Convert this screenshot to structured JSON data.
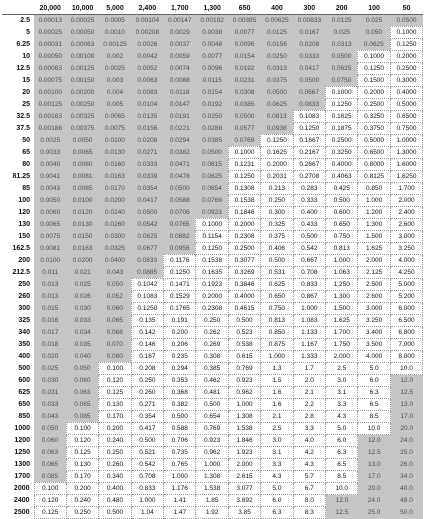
{
  "columns": [
    "20,000",
    "10,000",
    "5,000",
    "2,400",
    "1,700",
    "1,300",
    "650",
    "400",
    "300",
    "200",
    "100",
    "50"
  ],
  "rows": [
    {
      "label": "2.5",
      "cells": [
        "0.00013",
        "0.00025",
        "0.0005",
        "0.00104",
        "0.00147",
        "0.00192",
        "0.00385",
        "0.00625",
        "0.00833",
        "0.0125",
        "0.025",
        "0.0500"
      ]
    },
    {
      "label": "5",
      "cells": [
        "0.00025",
        "0.00050",
        "0.0010",
        "0.00208",
        "0.0029",
        "0.0038",
        "0.0077",
        "0.0125",
        "0.0167",
        "0.025",
        "0.050",
        "0.1000"
      ]
    },
    {
      "label": "6.25",
      "cells": [
        "0.00031",
        "0.00063",
        "0.00125",
        "0.0026",
        "0.0037",
        "0.0048",
        "0.0096",
        "0.0156",
        "0.0208",
        "0.0313",
        "0.0625",
        "0.1250"
      ]
    },
    {
      "label": "10",
      "cells": [
        "0.00050",
        "0.00100",
        "0.002",
        "0.0042",
        "0.0059",
        "0.0077",
        "0.0154",
        "0.0250",
        "0.0333",
        "0.0500",
        "0.1000",
        "0.2000"
      ]
    },
    {
      "label": "12.5",
      "cells": [
        "0.00063",
        "0.00125",
        "0.0025",
        "0.0052",
        "0.0074",
        "0.0096",
        "0.0192",
        "0.0313",
        "0.0417",
        "0.0625",
        "0.1250",
        "0.2500"
      ]
    },
    {
      "label": "15",
      "cells": [
        "0.00075",
        "0.00150",
        "0.003",
        "0.0063",
        "0.0088",
        "0.0115",
        "0.0231",
        "0.0375",
        "0.0500",
        "0.0750",
        "0.1500",
        "0.3000"
      ]
    },
    {
      "label": "20",
      "cells": [
        "0.00100",
        "0.00200",
        "0.004",
        "0.0083",
        "0.0118",
        "0.0154",
        "0.0308",
        "0.0500",
        "0.0667",
        "0.1000",
        "0.2000",
        "0.4000"
      ]
    },
    {
      "label": "25",
      "cells": [
        "0.00125",
        "0.00250",
        "0.005",
        "0.0104",
        "0.0147",
        "0.0192",
        "0.0385",
        "0.0625",
        "0.0833",
        "0.1250",
        "0.2500",
        "0.5000"
      ]
    },
    {
      "label": "32.5",
      "cells": [
        "0.00163",
        "0.00325",
        "0.0065",
        "0.0135",
        "0.0191",
        "0.0250",
        "0.0500",
        "0.0813",
        "0.1083",
        "0.1625",
        "0.3250",
        "0.6500"
      ]
    },
    {
      "label": "37.5",
      "cells": [
        "0.00188",
        "0.00375",
        "0.0075",
        "0.0156",
        "0.0221",
        "0.0288",
        "0.0577",
        "0.0938",
        "0.1250",
        "0.1875",
        "0.3750",
        "0.7500"
      ]
    },
    {
      "label": "50",
      "cells": [
        "0.0025",
        "0.0050",
        "0.0100",
        "0.0208",
        "0.0294",
        "0.0385",
        "0.0769",
        "0.1250",
        "0.1667",
        "0.2500",
        "0.5000",
        "1.0000"
      ]
    },
    {
      "label": "65",
      "cells": [
        "0.0033",
        "0.0065",
        "0.0130",
        "0.0271",
        "0.0382",
        "0.0500",
        "0.1000",
        "0.1625",
        "0.2167",
        "0.3250",
        "0.6500",
        "1.3000"
      ]
    },
    {
      "label": "80",
      "cells": [
        "0.0040",
        "0.0080",
        "0.0160",
        "0.0333",
        "0.0471",
        "0.0615",
        "0.1231",
        "0.2000",
        "0.2667",
        "0.4000",
        "0.8000",
        "1.6000"
      ]
    },
    {
      "label": "81.25",
      "cells": [
        "0.0041",
        "0.0081",
        "0.0163",
        "0.0339",
        "0.0478",
        "0.0625",
        "0.1250",
        "0.2031",
        "0.2708",
        "0.4063",
        "0.8125",
        "1.6250"
      ]
    },
    {
      "label": "85",
      "cells": [
        "0.0043",
        "0.0085",
        "0.0170",
        "0.0354",
        "0.0500",
        "0.0654",
        "0.1308",
        "0.213",
        "0.283",
        "0.425",
        "0.850",
        "1.700"
      ]
    },
    {
      "label": "100",
      "cells": [
        "0.0050",
        "0.0100",
        "0.0200",
        "0.0417",
        "0.0588",
        "0.0769",
        "0.1538",
        "0.250",
        "0.333",
        "0.500",
        "1.000",
        "2.000"
      ]
    },
    {
      "label": "120",
      "cells": [
        "0.0060",
        "0.0120",
        "0.0240",
        "0.0500",
        "0.0706",
        "0.0923",
        "0.1846",
        "0.300",
        "0.400",
        "0.600",
        "1.200",
        "2.400"
      ]
    },
    {
      "label": "130",
      "cells": [
        "0.0065",
        "0.0130",
        "0.0260",
        "0.0542",
        "0.0765",
        "0.1000",
        "0.2000",
        "0.325",
        "0.433",
        "0.650",
        "1.300",
        "2.600"
      ]
    },
    {
      "label": "150",
      "cells": [
        "0.0075",
        "0.0150",
        "0.0300",
        "0.0625",
        "0.0882",
        "0.1154",
        "0.2308",
        "0.375",
        "0.500",
        "0.750",
        "1.500",
        "3.000"
      ]
    },
    {
      "label": "162.5",
      "cells": [
        "0.0081",
        "0.0163",
        "0.0325",
        "0.0677",
        "0.0956",
        "0.1250",
        "0.2500",
        "0.406",
        "0.542",
        "0.813",
        "1.625",
        "3.250"
      ]
    },
    {
      "label": "200",
      "cells": [
        "0.0100",
        "0.0200",
        "0.0400",
        "0.0833",
        "0.1176",
        "0.1538",
        "0.3077",
        "0.500",
        "0.667",
        "1.000",
        "2.000",
        "4.000"
      ]
    },
    {
      "label": "212.5",
      "cells": [
        "0.011",
        "0.021",
        "0.043",
        "0.0885",
        "0.1250",
        "0.1635",
        "0.3269",
        "0.531",
        "0.708",
        "1.063",
        "2.125",
        "4.250"
      ]
    },
    {
      "label": "250",
      "cells": [
        "0.013",
        "0.025",
        "0.050",
        "0.1042",
        "0.1471",
        "0.1923",
        "0.3846",
        "0.625",
        "0.833",
        "1.250",
        "2.500",
        "5.000"
      ]
    },
    {
      "label": "260",
      "cells": [
        "0.013",
        "0.026",
        "0.052",
        "0.1083",
        "0.1529",
        "0.2000",
        "0.4000",
        "0.650",
        "0.867",
        "1.300",
        "2.600",
        "5.200"
      ]
    },
    {
      "label": "300",
      "cells": [
        "0.015",
        "0.030",
        "0.060",
        "0.1250",
        "0.1765",
        "0.2308",
        "0.4615",
        "0.750",
        "1.000",
        "1.500",
        "3.000",
        "6.000"
      ]
    },
    {
      "label": "325",
      "cells": [
        "0.016",
        "0.033",
        "0.065",
        "0.135",
        "0.191",
        "0.250",
        "0.500",
        "0.813",
        "1.083",
        "1.625",
        "3.250",
        "6.500"
      ]
    },
    {
      "label": "340",
      "cells": [
        "0.017",
        "0.034",
        "0.068",
        "0.142",
        "0.200",
        "0.262",
        "0.523",
        "0.850",
        "1.133",
        "1.700",
        "3.400",
        "6.800"
      ]
    },
    {
      "label": "350",
      "cells": [
        "0.018",
        "0.035",
        "0.070",
        "0.146",
        "0.206",
        "0.269",
        "0.538",
        "0.875",
        "1.167",
        "1.750",
        "3.500",
        "7.000"
      ]
    },
    {
      "label": "400",
      "cells": [
        "0.020",
        "0.040",
        "0.080",
        "0.167",
        "0.235",
        "0.308",
        "0.615",
        "1.000",
        "1.333",
        "2.000",
        "4.000",
        "8.000"
      ]
    },
    {
      "label": "500",
      "cells": [
        "0.025",
        "0.050",
        "0.100",
        "0.208",
        "0.294",
        "0.385",
        "0.769",
        "1.3",
        "1.7",
        "2.5",
        "5.0",
        "10.0"
      ]
    },
    {
      "label": "600",
      "cells": [
        "0.030",
        "0.060",
        "0.120",
        "0.250",
        "0.353",
        "0.462",
        "0.923",
        "1.5",
        "2.0",
        "3.0",
        "6.0",
        "12.0"
      ]
    },
    {
      "label": "625",
      "cells": [
        "0.031",
        "0.063",
        "0.125",
        "0.260",
        "0.368",
        "0.481",
        "0.962",
        "1.6",
        "2.1",
        "3.1",
        "6.3",
        "12.5"
      ]
    },
    {
      "label": "650",
      "cells": [
        "0.033",
        "0.065",
        "0.130",
        "0.271",
        "0.382",
        "0.500",
        "1.000",
        "1.6",
        "2.2",
        "3.3",
        "6.5",
        "13.0"
      ]
    },
    {
      "label": "850",
      "cells": [
        "0.043",
        "0.085",
        "0.170",
        "0.354",
        "0.500",
        "0.654",
        "1.308",
        "2.1",
        "2.8",
        "4.3",
        "8.5",
        "17.0"
      ]
    },
    {
      "label": "1000",
      "cells": [
        "0.050",
        "0.100",
        "0.200",
        "0.417",
        "0.588",
        "0.769",
        "1.538",
        "2.5",
        "3.3",
        "5.0",
        "10.0",
        "20.0"
      ]
    },
    {
      "label": "1200",
      "cells": [
        "0.060",
        "0.120",
        "0.240",
        "0.500",
        "0.706",
        "0.923",
        "1.846",
        "3.0",
        "4.0",
        "6.0",
        "12.0",
        "24.0"
      ]
    },
    {
      "label": "1250",
      "cells": [
        "0.063",
        "0.125",
        "0.250",
        "0.521",
        "0.735",
        "0.962",
        "1.923",
        "3.1",
        "4.2",
        "6.3",
        "12.5",
        "25.0"
      ]
    },
    {
      "label": "1300",
      "cells": [
        "0.065",
        "0.130",
        "0.260",
        "0.542",
        "0.765",
        "1.000",
        "2.000",
        "3.3",
        "4.3",
        "6.5",
        "13.0",
        "26.0"
      ]
    },
    {
      "label": "1700",
      "cells": [
        "0.085",
        "0.170",
        "0.340",
        "0.708",
        "1.000",
        "1.308",
        "2.615",
        "4.3",
        "5.7",
        "8.5",
        "17.0",
        "34.0"
      ]
    },
    {
      "label": "2000",
      "cells": [
        "0.100",
        "0.200",
        "0.400",
        "0.833",
        "1.176",
        "1.538",
        "3.077",
        "5.0",
        "6.7",
        "10.0",
        "20.0",
        "40.0"
      ]
    },
    {
      "label": "2400",
      "cells": [
        "0.120",
        "0.240",
        "0.480",
        "1.000",
        "1.41",
        "1.85",
        "3.692",
        "6.0",
        "8.0",
        "12.0",
        "24.0",
        "48.0"
      ]
    },
    {
      "label": "2500",
      "cells": [
        "0.125",
        "0.250",
        "0.500",
        "1.04",
        "1.47",
        "1.92",
        "3.85",
        "6.3",
        "8.3",
        "12.5",
        "25.0",
        "50.0"
      ]
    }
  ]
}
